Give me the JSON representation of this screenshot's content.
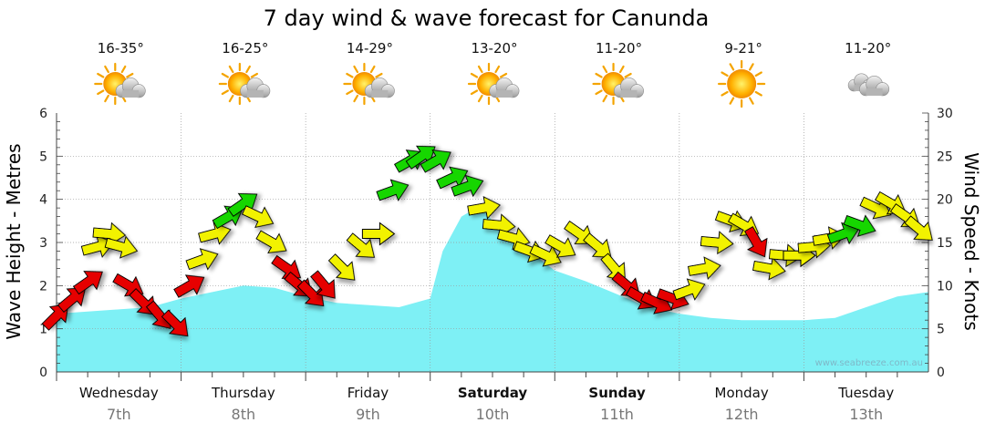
{
  "chart_data": {
    "type": "area",
    "title": "7 day wind & wave forecast for Canunda",
    "ylabel_left": "Wave Height - Metres",
    "ylabel_right": "Wind Speed - Knots",
    "ylim_left": [
      0,
      6
    ],
    "ylim_right": [
      0,
      30
    ],
    "yticks_left": [
      "0",
      "1",
      "2",
      "3",
      "4",
      "5",
      "6"
    ],
    "yticks_right": [
      "0",
      "5",
      "10",
      "15",
      "20",
      "25",
      "30"
    ],
    "watermark": "www.seabreeze.com.au",
    "days": [
      {
        "name": "Wednesday",
        "date": "7th",
        "temp": "16-35°",
        "icon": "sun-cloud-icon",
        "bold": false
      },
      {
        "name": "Thursday",
        "date": "8th",
        "temp": "16-25°",
        "icon": "sun-cloud-icon",
        "bold": false
      },
      {
        "name": "Friday",
        "date": "9th",
        "temp": "14-29°",
        "icon": "sun-cloud-icon",
        "bold": false
      },
      {
        "name": "Saturday",
        "date": "10th",
        "temp": "13-20°",
        "icon": "sun-cloud-icon",
        "bold": true
      },
      {
        "name": "Sunday",
        "date": "11th",
        "temp": "11-20°",
        "icon": "sun-cloud-icon",
        "bold": true
      },
      {
        "name": "Monday",
        "date": "12th",
        "temp": "9-21°",
        "icon": "sun-icon",
        "bold": false
      },
      {
        "name": "Tuesday",
        "date": "13th",
        "temp": "11-20°",
        "icon": "cloud-icon",
        "bold": false
      }
    ],
    "wave_series": {
      "x_days": [
        0,
        0.25,
        0.5,
        0.75,
        1,
        1.25,
        1.5,
        1.75,
        2,
        2.25,
        2.5,
        2.75,
        3,
        3.1,
        3.25,
        3.4,
        3.5,
        3.75,
        4,
        4.25,
        4.5,
        4.75,
        5,
        5.25,
        5.5,
        5.75,
        6,
        6.25,
        6.5,
        6.75,
        7
      ],
      "values": [
        1.35,
        1.4,
        1.45,
        1.5,
        1.7,
        1.85,
        2.0,
        1.95,
        1.75,
        1.6,
        1.55,
        1.5,
        1.7,
        2.8,
        3.6,
        3.85,
        3.5,
        2.9,
        2.35,
        2.1,
        1.8,
        1.5,
        1.35,
        1.25,
        1.2,
        1.2,
        1.2,
        1.25,
        1.5,
        1.75,
        1.85
      ]
    },
    "wind_series": {
      "x_days": [
        0,
        0.13,
        0.26,
        0.33,
        0.42,
        0.52,
        0.58,
        0.7,
        0.83,
        0.96,
        1.07,
        1.17,
        1.27,
        1.38,
        1.5,
        1.62,
        1.73,
        1.85,
        1.95,
        2.05,
        2.15,
        2.3,
        2.45,
        2.58,
        2.7,
        2.84,
        2.93,
        3.05,
        3.18,
        3.3,
        3.43,
        3.55,
        3.67,
        3.8,
        3.93,
        4.05,
        4.2,
        4.35,
        4.48,
        4.58,
        4.7,
        4.82,
        4.95,
        5.08,
        5.2,
        5.3,
        5.42,
        5.52,
        5.62,
        5.72,
        5.85,
        5.96,
        6.08,
        6.2,
        6.32,
        6.45,
        6.58,
        6.7,
        6.82,
        6.93
      ],
      "values": [
        6.5,
        8.5,
        10.5,
        14.5,
        16,
        14.5,
        10,
        8,
        6.5,
        5.5,
        10,
        13,
        16,
        18,
        19.5,
        18,
        15,
        12,
        10,
        9,
        10,
        12,
        14.5,
        16,
        21,
        24.5,
        25,
        24.5,
        22.5,
        21.5,
        19,
        17,
        15.5,
        14,
        13.5,
        14.5,
        16,
        14.5,
        12,
        10,
        8.5,
        8,
        8.5,
        9.5,
        12,
        15,
        17.5,
        17,
        15,
        12,
        13.5,
        13.5,
        14.5,
        15.5,
        16,
        17,
        19,
        19.5,
        18,
        16.5
      ],
      "colors": [
        "red",
        "red",
        "red",
        "yellow",
        "yellow",
        "yellow",
        "red",
        "red",
        "red",
        "red",
        "red",
        "yellow",
        "yellow",
        "green",
        "green",
        "yellow",
        "yellow",
        "red",
        "red",
        "red",
        "red",
        "yellow",
        "yellow",
        "yellow",
        "green",
        "green",
        "green",
        "green",
        "green",
        "green",
        "yellow",
        "yellow",
        "yellow",
        "yellow",
        "yellow",
        "yellow",
        "yellow",
        "yellow",
        "yellow",
        "red",
        "red",
        "red",
        "red",
        "yellow",
        "yellow",
        "yellow",
        "yellow",
        "yellow",
        "red",
        "yellow",
        "yellow",
        "yellow",
        "yellow",
        "yellow",
        "green",
        "green",
        "yellow",
        "yellow",
        "yellow",
        "yellow"
      ],
      "directions_deg": [
        45,
        50,
        55,
        75,
        95,
        105,
        120,
        135,
        140,
        135,
        60,
        70,
        75,
        60,
        55,
        115,
        120,
        125,
        130,
        135,
        140,
        135,
        130,
        90,
        70,
        60,
        55,
        60,
        65,
        70,
        80,
        95,
        105,
        110,
        115,
        120,
        125,
        130,
        140,
        130,
        120,
        115,
        110,
        70,
        80,
        95,
        110,
        120,
        150,
        100,
        95,
        90,
        85,
        80,
        70,
        110,
        115,
        120,
        125,
        130
      ]
    },
    "arrow_colors": {
      "red": "#e60000",
      "yellow": "#f2f200",
      "green": "#19d600"
    },
    "area_color": "#7ef0f5",
    "grid": true
  }
}
